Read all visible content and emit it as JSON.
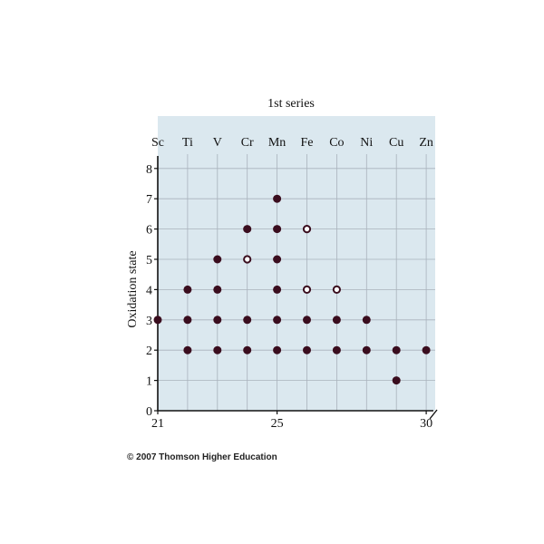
{
  "chart_data": {
    "type": "scatter",
    "title": "1st series",
    "ylabel": "Oxidation state",
    "xlabel": "",
    "elements": [
      "Sc",
      "Ti",
      "V",
      "Cr",
      "Mn",
      "Fe",
      "Co",
      "Ni",
      "Cu",
      "Zn"
    ],
    "x_tick_labels": [
      {
        "x": 21,
        "label": "21"
      },
      {
        "x": 25,
        "label": "25"
      },
      {
        "x": 30,
        "label": "30"
      }
    ],
    "y_ticks": [
      0,
      1,
      2,
      3,
      4,
      5,
      6,
      7,
      8
    ],
    "xlim": [
      21,
      30
    ],
    "ylim": [
      0,
      8
    ],
    "grid": true,
    "points": [
      {
        "x": 21,
        "y": 3,
        "filled": true
      },
      {
        "x": 22,
        "y": 2,
        "filled": true
      },
      {
        "x": 22,
        "y": 3,
        "filled": true
      },
      {
        "x": 22,
        "y": 4,
        "filled": true
      },
      {
        "x": 23,
        "y": 2,
        "filled": true
      },
      {
        "x": 23,
        "y": 3,
        "filled": true
      },
      {
        "x": 23,
        "y": 4,
        "filled": true
      },
      {
        "x": 23,
        "y": 5,
        "filled": true
      },
      {
        "x": 24,
        "y": 2,
        "filled": true
      },
      {
        "x": 24,
        "y": 3,
        "filled": true
      },
      {
        "x": 24,
        "y": 5,
        "filled": false
      },
      {
        "x": 24,
        "y": 6,
        "filled": true
      },
      {
        "x": 25,
        "y": 2,
        "filled": true
      },
      {
        "x": 25,
        "y": 3,
        "filled": true
      },
      {
        "x": 25,
        "y": 4,
        "filled": true
      },
      {
        "x": 25,
        "y": 5,
        "filled": true
      },
      {
        "x": 25,
        "y": 6,
        "filled": true
      },
      {
        "x": 25,
        "y": 7,
        "filled": true
      },
      {
        "x": 26,
        "y": 2,
        "filled": true
      },
      {
        "x": 26,
        "y": 3,
        "filled": true
      },
      {
        "x": 26,
        "y": 4,
        "filled": false
      },
      {
        "x": 26,
        "y": 6,
        "filled": false
      },
      {
        "x": 27,
        "y": 2,
        "filled": true
      },
      {
        "x": 27,
        "y": 3,
        "filled": true
      },
      {
        "x": 27,
        "y": 4,
        "filled": false
      },
      {
        "x": 28,
        "y": 2,
        "filled": true
      },
      {
        "x": 28,
        "y": 3,
        "filled": true
      },
      {
        "x": 29,
        "y": 1,
        "filled": true
      },
      {
        "x": 29,
        "y": 2,
        "filled": true
      },
      {
        "x": 30,
        "y": 2,
        "filled": true
      }
    ],
    "colors": {
      "background": "#dbe8ef",
      "grid": "#a9b2bc",
      "marker": "#3a0d1e",
      "open_marker_fill": "#ffffff",
      "axis": "#111111"
    }
  },
  "copyright": "© 2007 Thomson Higher Education"
}
